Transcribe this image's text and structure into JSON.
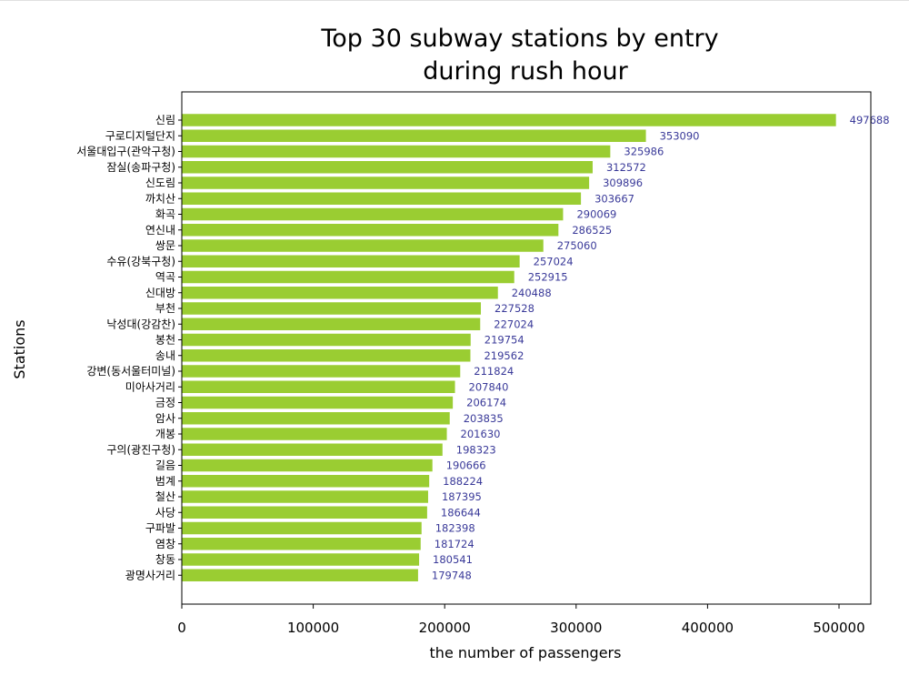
{
  "chart_data": {
    "type": "bar",
    "orientation": "horizontal",
    "title_line1": "Top 30 subway stations by entry",
    "title_line2": "during rush hour",
    "xlabel": "the number of passengers",
    "ylabel": "Stations",
    "xlim": [
      0,
      525000
    ],
    "xticks": [
      "0",
      "100000",
      "200000",
      "300000",
      "400000",
      "500000"
    ],
    "xtick_values": [
      0,
      100000,
      200000,
      300000,
      400000,
      500000
    ],
    "grid": false,
    "bar_color": "#9acd32",
    "label_color": "#3a3a99",
    "categories": [
      "신림",
      "구로디지털단지",
      "서울대입구(관악구청)",
      "잠실(송파구청)",
      "신도림",
      "까치산",
      "화곡",
      "연신내",
      "쌍문",
      "수유(강북구청)",
      "역곡",
      "신대방",
      "부천",
      "낙성대(강감찬)",
      "봉천",
      "송내",
      "강변(동서울터미널)",
      "미아사거리",
      "금정",
      "암사",
      "개봉",
      "구의(광진구청)",
      "길음",
      "범계",
      "철산",
      "사당",
      "구파발",
      "염창",
      "창동",
      "광명사거리"
    ],
    "values": [
      497688,
      353090,
      325986,
      312572,
      309896,
      303667,
      290069,
      286525,
      275060,
      257024,
      252915,
      240488,
      227528,
      227024,
      219754,
      219562,
      211824,
      207840,
      206174,
      203835,
      201630,
      198323,
      190666,
      188224,
      187395,
      186644,
      182398,
      181724,
      180541,
      179748
    ]
  }
}
